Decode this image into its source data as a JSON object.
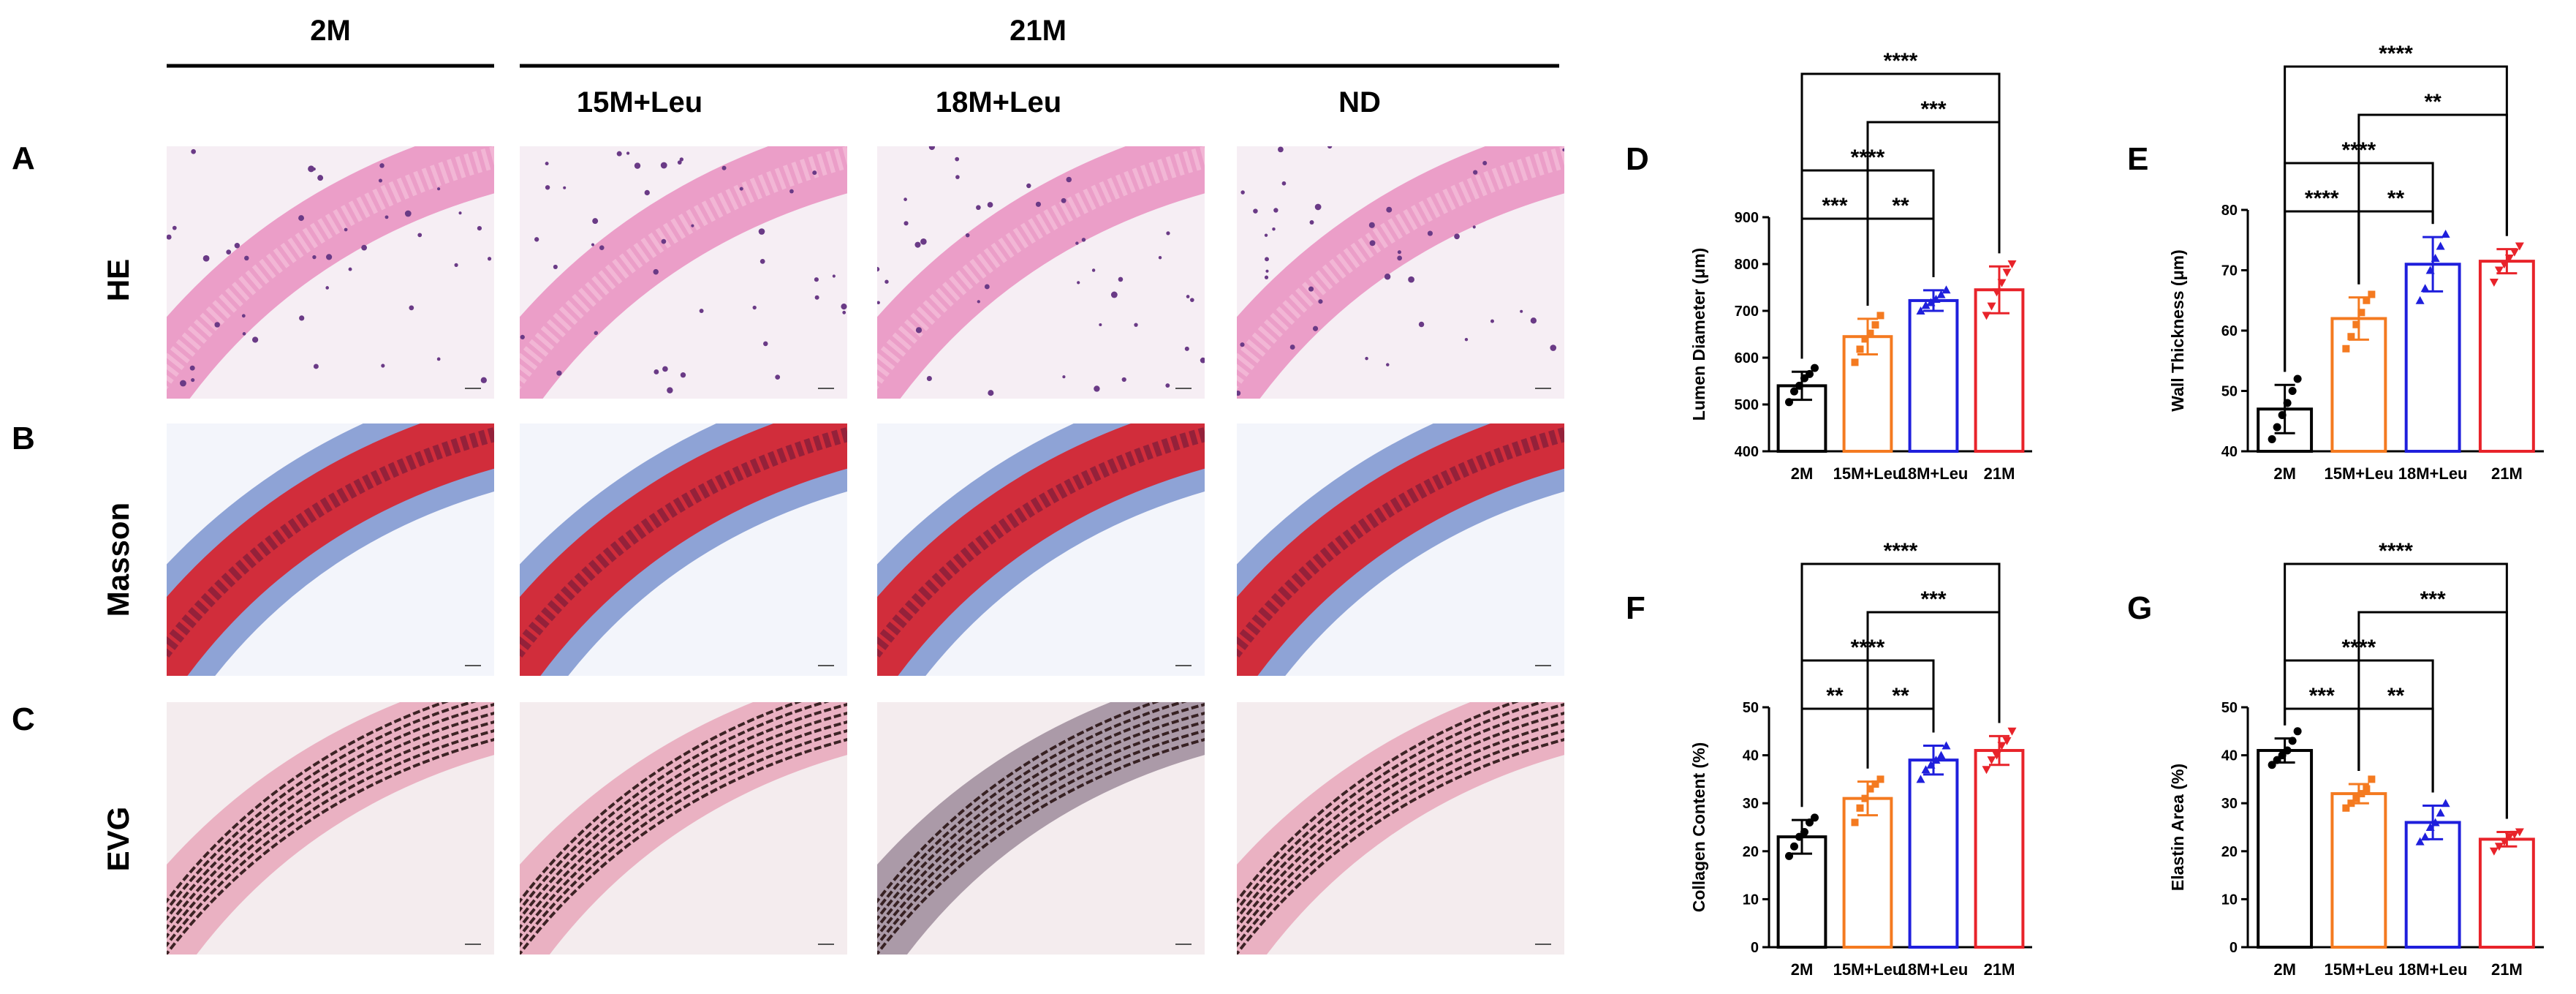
{
  "headers": {
    "group_2m": "2M",
    "group_21m": "21M",
    "sub_15m": "15M+Leu",
    "sub_18m": "18M+Leu",
    "sub_nd": "ND"
  },
  "rows": [
    {
      "letter": "A",
      "stain": "HE"
    },
    {
      "letter": "B",
      "stain": "Masson"
    },
    {
      "letter": "C",
      "stain": "EVG"
    }
  ],
  "stain_colors": {
    "he_bg": "#f6eef4",
    "he_tissue": "#e98fc0",
    "he_nuclei": "#6a3a86",
    "masson_bg": "#f3f5fb",
    "masson_red": "#d8202a",
    "masson_blue": "#3a5fb8",
    "evg_bg": "#f4ecee",
    "evg_dark": "#2a1414",
    "evg_pink": "#e7a7ba",
    "evg_grey": "#9e8c9b"
  },
  "chart_data": [
    {
      "panel": "D",
      "type": "bar",
      "categories": [
        "2M",
        "15M+Leu",
        "18M+Leu",
        "21M"
      ],
      "colors": [
        "#000000",
        "#f47a20",
        "#1f1fdc",
        "#e8232a"
      ],
      "values": [
        540,
        645,
        722,
        745
      ],
      "errors": [
        30,
        38,
        22,
        50
      ],
      "points": [
        [
          505,
          528,
          540,
          556,
          565,
          578
        ],
        [
          590,
          618,
          640,
          652,
          670,
          690
        ],
        [
          700,
          712,
          718,
          725,
          735,
          745
        ],
        [
          690,
          710,
          740,
          760,
          782,
          800
        ]
      ],
      "ylabel": "Lumen Diameter (μm)",
      "ylim": [
        400,
        900
      ],
      "yticks": [
        400,
        500,
        600,
        700,
        800,
        900
      ],
      "significance": [
        {
          "from": 0,
          "to": 1,
          "label": "***"
        },
        {
          "from": 1,
          "to": 2,
          "label": "**"
        },
        {
          "from": 0,
          "to": 2,
          "label": "****"
        },
        {
          "from": 1,
          "to": 3,
          "label": "***"
        },
        {
          "from": 0,
          "to": 3,
          "label": "****"
        }
      ]
    },
    {
      "panel": "E",
      "type": "bar",
      "categories": [
        "2M",
        "15M+Leu",
        "18M+Leu",
        "21M"
      ],
      "colors": [
        "#000000",
        "#f47a20",
        "#1f1fdc",
        "#e8232a"
      ],
      "values": [
        47,
        62,
        71,
        71.5
      ],
      "errors": [
        4,
        3.5,
        4.5,
        2
      ],
      "points": [
        [
          42,
          44,
          46,
          48,
          50,
          52
        ],
        [
          57,
          59,
          61,
          63,
          65,
          66
        ],
        [
          65,
          67,
          70,
          72,
          74,
          76
        ],
        [
          68,
          70,
          71,
          72,
          73,
          74
        ]
      ],
      "ylabel": "Wall Thickness (μm)",
      "ylim": [
        40,
        80
      ],
      "yticks": [
        40,
        50,
        60,
        70,
        80
      ],
      "significance": [
        {
          "from": 0,
          "to": 1,
          "label": "****"
        },
        {
          "from": 1,
          "to": 2,
          "label": "**"
        },
        {
          "from": 0,
          "to": 2,
          "label": "****"
        },
        {
          "from": 1,
          "to": 3,
          "label": "**"
        },
        {
          "from": 0,
          "to": 3,
          "label": "****"
        }
      ]
    },
    {
      "panel": "F",
      "type": "bar",
      "categories": [
        "2M",
        "15M+Leu",
        "18M+Leu",
        "21M"
      ],
      "colors": [
        "#000000",
        "#f47a20",
        "#1f1fdc",
        "#e8232a"
      ],
      "values": [
        23,
        31,
        39,
        41
      ],
      "errors": [
        3.5,
        3.5,
        3,
        3
      ],
      "points": [
        [
          19,
          21,
          23,
          24,
          26,
          27
        ],
        [
          26,
          29,
          31,
          33,
          34,
          35
        ],
        [
          35,
          37,
          38,
          39,
          40,
          42
        ],
        [
          37,
          39,
          40,
          42,
          43,
          45
        ]
      ],
      "ylabel": "Collagen Content (%)",
      "ylim": [
        0,
        50
      ],
      "yticks": [
        0,
        10,
        20,
        30,
        40,
        50
      ],
      "significance": [
        {
          "from": 0,
          "to": 1,
          "label": "**"
        },
        {
          "from": 1,
          "to": 2,
          "label": "**"
        },
        {
          "from": 0,
          "to": 2,
          "label": "****"
        },
        {
          "from": 1,
          "to": 3,
          "label": "***"
        },
        {
          "from": 0,
          "to": 3,
          "label": "****"
        }
      ]
    },
    {
      "panel": "G",
      "type": "bar",
      "categories": [
        "2M",
        "15M+Leu",
        "18M+Leu",
        "21M"
      ],
      "colors": [
        "#000000",
        "#f47a20",
        "#1f1fdc",
        "#e8232a"
      ],
      "values": [
        41,
        32,
        26,
        22.5
      ],
      "errors": [
        2.5,
        2,
        3.5,
        1.5
      ],
      "points": [
        [
          38,
          39,
          40,
          41,
          43,
          45
        ],
        [
          29,
          30,
          31,
          32,
          33,
          35
        ],
        [
          22,
          23,
          25,
          26,
          28,
          30
        ],
        [
          20,
          21,
          22,
          23,
          23.5,
          24
        ]
      ],
      "ylabel": "Elastin Area (%)",
      "ylim": [
        0,
        50
      ],
      "yticks": [
        0,
        10,
        20,
        30,
        40,
        50
      ],
      "significance": [
        {
          "from": 0,
          "to": 1,
          "label": "***"
        },
        {
          "from": 1,
          "to": 2,
          "label": "**"
        },
        {
          "from": 0,
          "to": 2,
          "label": "****"
        },
        {
          "from": 1,
          "to": 3,
          "label": "***"
        },
        {
          "from": 0,
          "to": 3,
          "label": "****"
        }
      ]
    }
  ]
}
